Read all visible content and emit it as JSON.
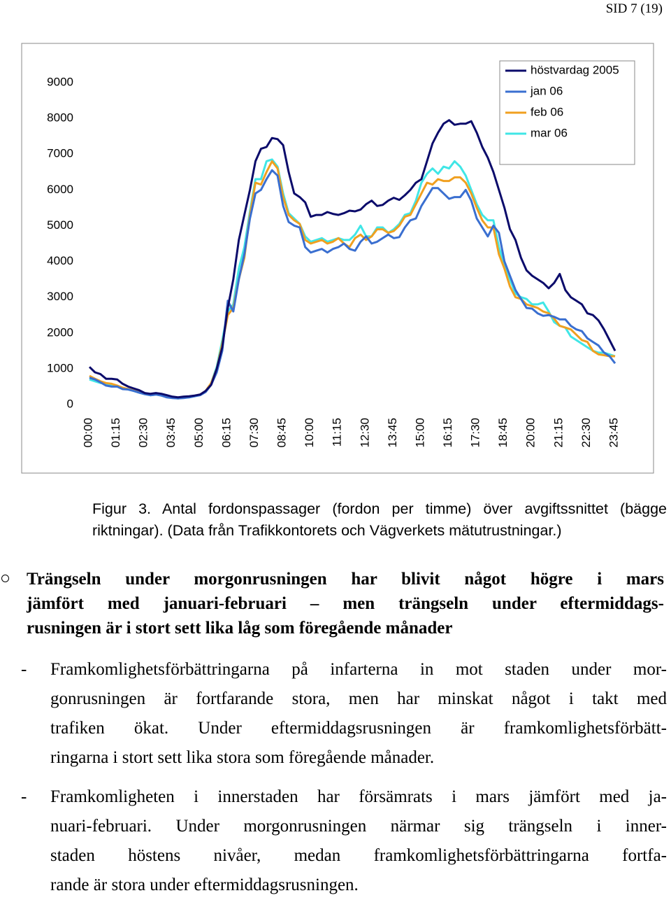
{
  "header": {
    "page": "SID 7 (19)"
  },
  "chart_data": {
    "type": "line",
    "categories": [
      "00:00",
      null,
      null,
      null,
      null,
      "01:15",
      null,
      null,
      null,
      null,
      "02:30",
      null,
      null,
      null,
      null,
      "03:45",
      null,
      null,
      null,
      null,
      "05:00",
      null,
      null,
      null,
      null,
      "06:15",
      null,
      null,
      null,
      null,
      "07:30",
      null,
      null,
      null,
      null,
      "08:45",
      null,
      null,
      null,
      null,
      "10:00",
      null,
      null,
      null,
      null,
      "11:15",
      null,
      null,
      null,
      null,
      "12:30",
      null,
      null,
      null,
      null,
      "13:45",
      null,
      null,
      null,
      null,
      "15:00",
      null,
      null,
      null,
      null,
      "16:15",
      null,
      null,
      null,
      null,
      "17:30",
      null,
      null,
      null,
      null,
      "18:45",
      null,
      null,
      null,
      null,
      "20:00",
      null,
      null,
      null,
      null,
      "21:15",
      null,
      null,
      null,
      null,
      "22:30",
      null,
      null,
      null,
      null,
      "23:45"
    ],
    "series": [
      {
        "name": "höstvardag 2005",
        "color": "#0b0b6b",
        "values": [
          1050,
          900,
          850,
          720,
          720,
          700,
          580,
          500,
          450,
          400,
          320,
          300,
          320,
          300,
          260,
          220,
          200,
          220,
          230,
          250,
          280,
          380,
          550,
          1000,
          1600,
          2700,
          3500,
          4600,
          5300,
          6000,
          6800,
          7150,
          7200,
          7450,
          7420,
          7250,
          6500,
          5900,
          5800,
          5650,
          5250,
          5300,
          5300,
          5380,
          5330,
          5300,
          5350,
          5420,
          5400,
          5450,
          5600,
          5700,
          5550,
          5580,
          5700,
          5780,
          5720,
          5850,
          6000,
          6200,
          6300,
          6800,
          7300,
          7600,
          7850,
          7950,
          7820,
          7850,
          7850,
          7920,
          7600,
          7200,
          6900,
          6500,
          6000,
          5500,
          4900,
          4600,
          4100,
          3750,
          3600,
          3500,
          3400,
          3250,
          3400,
          3650,
          3200,
          3000,
          2900,
          2800,
          2550,
          2500,
          2350,
          2100,
          1800,
          1500
        ]
      },
      {
        "name": "jan 06",
        "color": "#3a6fd0",
        "values": [
          750,
          700,
          620,
          530,
          500,
          500,
          430,
          420,
          380,
          330,
          290,
          260,
          280,
          250,
          200,
          180,
          170,
          180,
          200,
          230,
          260,
          350,
          550,
          900,
          1500,
          2900,
          2600,
          3500,
          4200,
          5200,
          5900,
          6000,
          6300,
          6550,
          6400,
          5550,
          5100,
          5000,
          4950,
          4400,
          4250,
          4300,
          4350,
          4250,
          4350,
          4400,
          4500,
          4350,
          4300,
          4550,
          4700,
          4500,
          4550,
          4650,
          4750,
          4650,
          4680,
          4950,
          5150,
          5200,
          5550,
          5800,
          6050,
          6050,
          5900,
          5750,
          5800,
          5800,
          6000,
          5700,
          5200,
          4950,
          4700,
          5000,
          4800,
          4000,
          3600,
          3200,
          2950,
          2700,
          2680,
          2550,
          2480,
          2500,
          2450,
          2380,
          2380,
          2200,
          2100,
          2050,
          1850,
          1750,
          1650,
          1450,
          1350,
          1150
        ]
      },
      {
        "name": "feb 06",
        "color": "#f0a020",
        "values": [
          800,
          720,
          650,
          600,
          580,
          530,
          470,
          430,
          400,
          350,
          300,
          270,
          290,
          260,
          230,
          200,
          180,
          200,
          210,
          240,
          280,
          380,
          600,
          1000,
          1700,
          2500,
          2700,
          3500,
          4100,
          5300,
          6200,
          6150,
          6500,
          6800,
          6600,
          5800,
          5300,
          5150,
          5050,
          4600,
          4500,
          4550,
          4600,
          4500,
          4550,
          4650,
          4500,
          4400,
          4650,
          4750,
          4600,
          4700,
          4900,
          4900,
          4800,
          4850,
          5000,
          5250,
          5300,
          5600,
          5900,
          6200,
          6150,
          6300,
          6250,
          6250,
          6350,
          6350,
          6200,
          5900,
          5500,
          5150,
          4950,
          4950,
          4200,
          3800,
          3300,
          3000,
          2950,
          2800,
          2750,
          2700,
          2600,
          2550,
          2400,
          2200,
          2150,
          2100,
          1950,
          1800,
          1750,
          1500,
          1400,
          1380,
          1350,
          1350
        ]
      },
      {
        "name": "mar 06",
        "color": "#40e6e6",
        "values": [
          700,
          650,
          600,
          580,
          550,
          500,
          450,
          420,
          380,
          330,
          290,
          260,
          280,
          250,
          220,
          190,
          170,
          190,
          200,
          230,
          270,
          370,
          600,
          1050,
          1800,
          2600,
          2800,
          3800,
          4400,
          5400,
          6300,
          6300,
          6800,
          6850,
          6650,
          5900,
          5350,
          5200,
          5050,
          4700,
          4550,
          4600,
          4650,
          4550,
          4600,
          4650,
          4600,
          4600,
          4750,
          5000,
          4700,
          4700,
          4950,
          4950,
          4800,
          4900,
          5050,
          5300,
          5350,
          5700,
          6200,
          6450,
          6600,
          6450,
          6650,
          6600,
          6800,
          6650,
          6400,
          6000,
          5600,
          5300,
          5150,
          5150,
          4400,
          3900,
          3500,
          3100,
          3000,
          2950,
          2800,
          2800,
          2850,
          2600,
          2300,
          2200,
          2150,
          1900,
          1800,
          1700,
          1600,
          1500,
          1450,
          1450,
          1400,
          1350
        ]
      }
    ],
    "ylim": [
      0,
      9000
    ],
    "yticks": [
      0,
      1000,
      2000,
      3000,
      4000,
      5000,
      6000,
      7000,
      8000,
      9000
    ],
    "grid": false,
    "legend": "upper right"
  },
  "caption": [
    "Figur 3. Antal fordonspassager (fordon per timme) över avgiftssnittet (bägge",
    "riktningar). (Data från Trafikkontorets och Vägverkets mätutrustningar.)"
  ],
  "bullet": [
    "Trängseln under morgonrusningen har blivit något högre i mars",
    "jämfört med januari-februari – men trängseln under eftermiddags-",
    "rusningen är i stort sett lika låg som föregående månader"
  ],
  "items": [
    {
      "dash": "-",
      "lines": [
        "Framkomlighetsförbättringarna på infarterna in mot staden under mor-",
        "gonrusningen är fortfarande stora, men har minskat något i takt med",
        "trafiken ökat. Under eftermiddagsrusningen är framkomlighetsförbätt-",
        "ringarna i stort sett lika stora som föregående månader."
      ]
    },
    {
      "dash": "-",
      "lines": [
        "Framkomligheten i innerstaden har försämrats i mars jämfört med ja-",
        "nuari-februari. Under morgonrusningen närmar sig trängseln i inner-",
        "staden höstens nivåer, medan framkomlighetsförbättringarna fortfa-",
        "rande är stora under eftermiddagsrusningen."
      ]
    }
  ]
}
